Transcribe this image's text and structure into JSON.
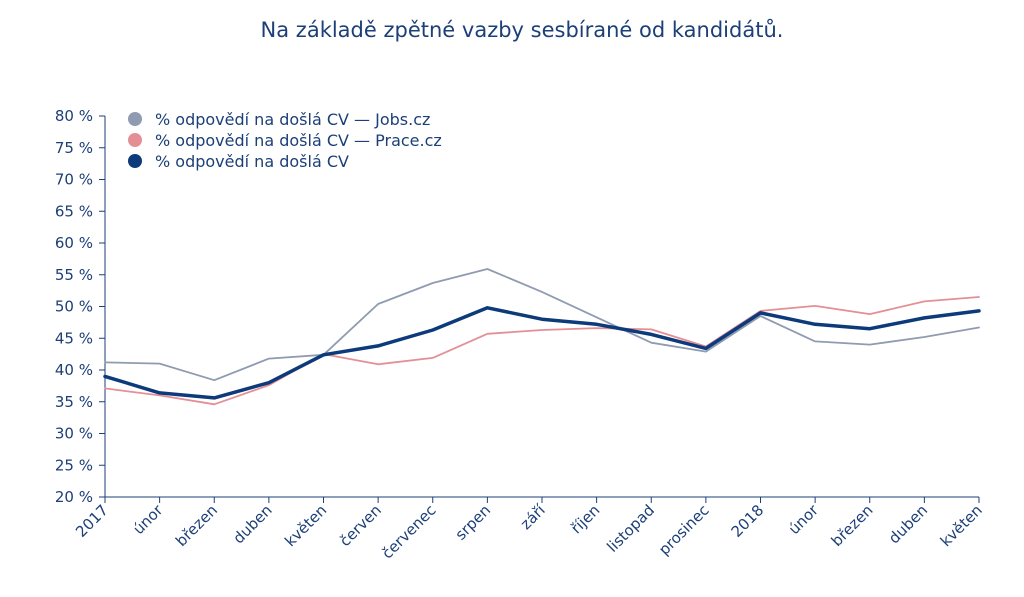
{
  "chart_data": {
    "type": "line",
    "title": "Na základě zpětné vazby sesbírané od kandidátů.",
    "xlabel": "",
    "ylabel": "",
    "ylim": [
      20,
      80
    ],
    "y_ticks": [
      "20 %",
      "25 %",
      "30 %",
      "35 %",
      "40 %",
      "45 %",
      "50 %",
      "55 %",
      "60 %",
      "65 %",
      "70 %",
      "75 %",
      "80 %"
    ],
    "categories": [
      "2017",
      "únor",
      "březen",
      "duben",
      "květen",
      "červen",
      "červenec",
      "srpen",
      "září",
      "říjen",
      "listopad",
      "prosinec",
      "2018",
      "únor",
      "březen",
      "duben",
      "květen"
    ],
    "legend_position": "top-left",
    "series": [
      {
        "name": "% odpovědí na došlá CV — Jobs.cz",
        "color": "#8f9bb0",
        "values": [
          41.2,
          41.0,
          38.4,
          41.8,
          42.4,
          50.4,
          53.7,
          55.9,
          52.3,
          48.3,
          44.3,
          42.9,
          48.5,
          44.5,
          44.0,
          45.2,
          46.7
        ]
      },
      {
        "name": "% odpovědí na došlá CV — Prace.cz",
        "color": "#e38f95",
        "values": [
          37.1,
          36.0,
          34.6,
          37.6,
          42.5,
          40.9,
          41.9,
          45.7,
          46.3,
          46.6,
          46.4,
          43.7,
          49.3,
          50.1,
          48.8,
          50.8,
          51.5
        ]
      },
      {
        "name": "% odpovědí na došlá CV",
        "color": "#0d3a7a",
        "values": [
          39.0,
          36.4,
          35.6,
          38.0,
          42.4,
          43.8,
          46.3,
          49.8,
          48.0,
          47.2,
          45.6,
          43.4,
          49.0,
          47.2,
          46.5,
          48.2,
          49.3
        ]
      }
    ]
  }
}
